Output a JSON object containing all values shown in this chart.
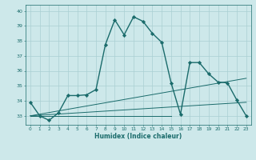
{
  "xlabel": "Humidex (Indice chaleur)",
  "ylabel": "",
  "background_color": "#cde8ea",
  "grid_color": "#aacfd2",
  "line_color": "#1a6b6b",
  "xlim": [
    -0.5,
    23.5
  ],
  "ylim": [
    32.4,
    40.4
  ],
  "yticks": [
    33,
    34,
    35,
    36,
    37,
    38,
    39,
    40
  ],
  "xticks": [
    0,
    1,
    2,
    3,
    4,
    5,
    6,
    7,
    8,
    9,
    10,
    11,
    12,
    13,
    14,
    15,
    16,
    17,
    18,
    19,
    20,
    21,
    22,
    23
  ],
  "xtick_labels": [
    "0",
    "1",
    "2",
    "3",
    "4",
    "5",
    "6",
    "7",
    "8",
    "9",
    "10",
    "11",
    "12",
    "13",
    "14",
    "15",
    "16",
    "17",
    "18",
    "19",
    "20",
    "21",
    "22",
    "23"
  ],
  "series": [
    {
      "x": [
        0,
        1,
        2,
        3,
        4,
        5,
        6,
        7,
        8,
        9,
        10,
        11,
        12,
        13,
        14,
        15,
        16,
        17,
        18,
        19,
        20,
        21,
        22,
        23
      ],
      "y": [
        33.9,
        33.0,
        32.7,
        33.2,
        34.35,
        34.35,
        34.4,
        34.75,
        37.75,
        39.4,
        38.4,
        39.6,
        39.3,
        38.5,
        37.9,
        35.2,
        33.1,
        36.55,
        36.55,
        35.8,
        35.25,
        35.2,
        34.05,
        33.0
      ],
      "marker": "D",
      "markersize": 2.2,
      "linewidth": 1.0
    },
    {
      "x": [
        0,
        15
      ],
      "y": [
        33.0,
        33.0
      ],
      "marker": null,
      "markersize": 0,
      "linewidth": 0.7
    },
    {
      "x": [
        0,
        23
      ],
      "y": [
        33.0,
        33.9
      ],
      "marker": null,
      "markersize": 0,
      "linewidth": 0.7
    },
    {
      "x": [
        0,
        23
      ],
      "y": [
        33.0,
        35.5
      ],
      "marker": null,
      "markersize": 0,
      "linewidth": 0.7
    }
  ]
}
